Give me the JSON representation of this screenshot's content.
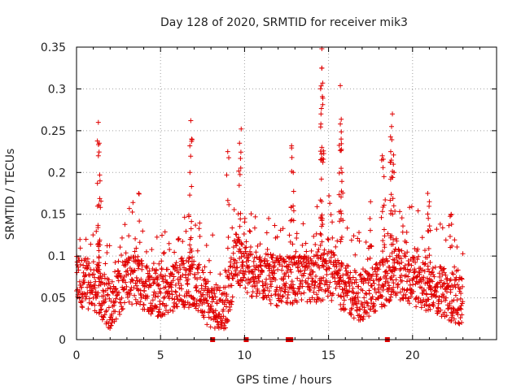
{
  "chart_data": {
    "type": "scatter",
    "title": "Day 128 of 2020, SRMTID for receiver mik3",
    "xlabel": "GPS time / hours",
    "ylabel": "SRMTID / TECUs",
    "xlim": [
      0,
      25
    ],
    "ylim": [
      0,
      0.35
    ],
    "x_ticks": [
      0,
      5,
      10,
      15,
      20
    ],
    "x_tick_labels": [
      "0",
      "5",
      "10",
      "15",
      "20"
    ],
    "y_ticks": [
      0,
      0.05,
      0.1,
      0.15,
      0.2,
      0.25,
      0.3,
      0.35
    ],
    "y_tick_labels": [
      "0",
      "0.05",
      "0.1",
      "0.15",
      "0.2",
      "0.25",
      "0.3",
      "0.35"
    ],
    "grid": true,
    "marker": "+",
    "color": "#e00000",
    "data_span_hours": [
      0,
      23
    ],
    "baseline_profile": [
      [
        0,
        0.07
      ],
      [
        1,
        0.065
      ],
      [
        2,
        0.04
      ],
      [
        3,
        0.075
      ],
      [
        4,
        0.065
      ],
      [
        5,
        0.055
      ],
      [
        6,
        0.065
      ],
      [
        7,
        0.07
      ],
      [
        8,
        0.04
      ],
      [
        8.8,
        0.03
      ],
      [
        9.5,
        0.1
      ],
      [
        10,
        0.085
      ],
      [
        11,
        0.075
      ],
      [
        12,
        0.07
      ],
      [
        13,
        0.07
      ],
      [
        14,
        0.07
      ],
      [
        15,
        0.08
      ],
      [
        16,
        0.06
      ],
      [
        17,
        0.05
      ],
      [
        18,
        0.065
      ],
      [
        19,
        0.08
      ],
      [
        20,
        0.07
      ],
      [
        21,
        0.06
      ],
      [
        22,
        0.055
      ],
      [
        23,
        0.045
      ]
    ],
    "peak_events": [
      {
        "x": 1.3,
        "y": 0.26
      },
      {
        "x": 1.35,
        "y": 0.235
      },
      {
        "x": 1.3,
        "y": 0.22
      },
      {
        "x": 1.4,
        "y": 0.19
      },
      {
        "x": 3.7,
        "y": 0.175
      },
      {
        "x": 6.8,
        "y": 0.262
      },
      {
        "x": 6.85,
        "y": 0.24
      },
      {
        "x": 6.75,
        "y": 0.2
      },
      {
        "x": 9.0,
        "y": 0.225
      },
      {
        "x": 9.8,
        "y": 0.252
      },
      {
        "x": 9.7,
        "y": 0.235
      },
      {
        "x": 12.8,
        "y": 0.232
      },
      {
        "x": 12.9,
        "y": 0.2
      },
      {
        "x": 14.6,
        "y": 0.348
      },
      {
        "x": 14.6,
        "y": 0.325
      },
      {
        "x": 14.65,
        "y": 0.307
      },
      {
        "x": 14.55,
        "y": 0.27
      },
      {
        "x": 14.6,
        "y": 0.23
      },
      {
        "x": 15.7,
        "y": 0.304
      },
      {
        "x": 15.7,
        "y": 0.258
      },
      {
        "x": 15.75,
        "y": 0.24
      },
      {
        "x": 15.8,
        "y": 0.2
      },
      {
        "x": 17.5,
        "y": 0.165
      },
      {
        "x": 18.2,
        "y": 0.22
      },
      {
        "x": 18.3,
        "y": 0.195
      },
      {
        "x": 18.8,
        "y": 0.27
      },
      {
        "x": 18.75,
        "y": 0.255
      },
      {
        "x": 18.7,
        "y": 0.225
      },
      {
        "x": 18.9,
        "y": 0.2
      },
      {
        "x": 20.9,
        "y": 0.175
      },
      {
        "x": 21.0,
        "y": 0.165
      },
      {
        "x": 22.3,
        "y": 0.15
      }
    ],
    "zero_markers_x": [
      8.1,
      10.1,
      12.6,
      12.75,
      18.5
    ]
  }
}
